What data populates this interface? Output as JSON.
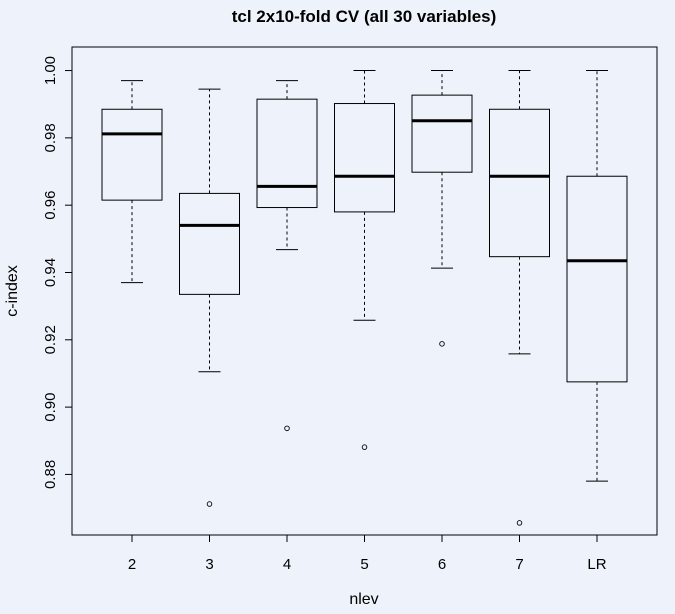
{
  "colors": {
    "background": "#eef3fb",
    "ink": "#000000"
  },
  "chart_data": {
    "type": "boxplot",
    "title": "tcl 2x10-fold CV (all 30 variables)",
    "xlabel": "nlev",
    "ylabel": "c-index",
    "categories": [
      "2",
      "3",
      "4",
      "5",
      "6",
      "7",
      "LR"
    ],
    "ylim": [
      0.862,
      1.007
    ],
    "yticks": [
      0.88,
      0.9,
      0.92,
      0.94,
      0.96,
      0.98,
      1.0
    ],
    "ytick_labels": [
      "0.88",
      "0.90",
      "0.92",
      "0.94",
      "0.96",
      "0.98",
      "1.00"
    ],
    "grid": false,
    "boxes": [
      {
        "category": "2",
        "whisker_low": 0.937,
        "q1": 0.9615,
        "median": 0.9812,
        "q3": 0.9885,
        "whisker_high": 0.997,
        "outliers": []
      },
      {
        "category": "3",
        "whisker_low": 0.9105,
        "q1": 0.9335,
        "median": 0.954,
        "q3": 0.9635,
        "whisker_high": 0.9945,
        "outliers": [
          0.8712
        ]
      },
      {
        "category": "4",
        "whisker_low": 0.9468,
        "q1": 0.9593,
        "median": 0.9656,
        "q3": 0.9915,
        "whisker_high": 0.997,
        "outliers": [
          0.8937
        ]
      },
      {
        "category": "5",
        "whisker_low": 0.9258,
        "q1": 0.958,
        "median": 0.9686,
        "q3": 0.9902,
        "whisker_high": 1.0,
        "outliers": [
          0.8881
        ]
      },
      {
        "category": "6",
        "whisker_low": 0.9413,
        "q1": 0.9698,
        "median": 0.9851,
        "q3": 0.9927,
        "whisker_high": 1.0,
        "outliers": [
          0.9188
        ]
      },
      {
        "category": "7",
        "whisker_low": 0.9158,
        "q1": 0.9447,
        "median": 0.9686,
        "q3": 0.9885,
        "whisker_high": 1.0,
        "outliers": [
          0.8656
        ]
      },
      {
        "category": "LR",
        "whisker_low": 0.878,
        "q1": 0.9075,
        "median": 0.9435,
        "q3": 0.9686,
        "whisker_high": 1.0,
        "outliers": []
      }
    ]
  }
}
